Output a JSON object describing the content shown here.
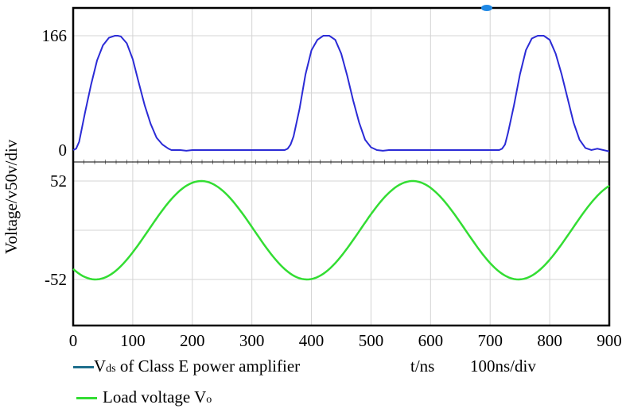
{
  "chart_data": [
    {
      "type": "line",
      "panel": "top",
      "ylabel_prefix": "Voltage/v",
      "ylabel_mid": "50v/div",
      "y_ticks": [
        "166",
        "0"
      ],
      "ylim": [
        -10,
        185
      ],
      "xlim": [
        0,
        900
      ],
      "grid": true,
      "series": [
        {
          "name": "Vds of Class E power amplifier",
          "color": "#2b2bd6",
          "x": [
            0,
            5,
            10,
            20,
            30,
            40,
            50,
            60,
            70,
            75,
            80,
            90,
            100,
            110,
            120,
            130,
            140,
            150,
            160,
            165,
            170,
            180,
            190,
            200,
            210,
            220,
            230,
            240,
            250,
            260,
            270,
            280,
            290,
            300,
            310,
            320,
            330,
            340,
            350,
            355,
            360,
            365,
            370,
            380,
            390,
            400,
            410,
            420,
            430,
            440,
            450,
            460,
            470,
            480,
            490,
            500,
            510,
            520,
            530,
            540,
            550,
            560,
            570,
            580,
            590,
            600,
            610,
            620,
            630,
            640,
            650,
            660,
            670,
            680,
            690,
            700,
            710,
            715,
            720,
            725,
            730,
            740,
            750,
            760,
            770,
            780,
            790,
            800,
            810,
            820,
            830,
            840,
            850,
            860,
            870,
            880,
            890,
            900
          ],
          "values": [
            0,
            2,
            12,
            55,
            95,
            130,
            152,
            163,
            166,
            166,
            165,
            155,
            132,
            98,
            65,
            38,
            18,
            8,
            2,
            0,
            0,
            0,
            -1,
            0,
            0,
            0,
            0,
            0,
            0,
            0,
            0,
            0,
            0,
            0,
            0,
            0,
            0,
            0,
            0,
            0,
            2,
            8,
            20,
            60,
            110,
            145,
            160,
            166,
            166,
            160,
            140,
            108,
            72,
            40,
            15,
            4,
            0,
            -1,
            0,
            0,
            0,
            0,
            0,
            0,
            0,
            0,
            0,
            0,
            0,
            0,
            0,
            0,
            0,
            0,
            0,
            0,
            0,
            0,
            2,
            8,
            25,
            65,
            110,
            145,
            162,
            166,
            166,
            160,
            140,
            110,
            75,
            40,
            15,
            3,
            0,
            2,
            0,
            -2
          ]
        }
      ]
    },
    {
      "type": "line",
      "panel": "bottom",
      "y_ticks": [
        "52",
        "-52"
      ],
      "ylim": [
        -100,
        60
      ],
      "xlim": [
        0,
        900
      ],
      "x_ticks": [
        "0",
        "100",
        "200",
        "300",
        "400",
        "500",
        "600",
        "700",
        "800",
        "900"
      ],
      "grid": true,
      "series": [
        {
          "name": "Load voltage V",
          "name_sub": "o",
          "color": "#33dd33",
          "period": 355,
          "peak_x": 215,
          "amplitude": 52,
          "offset": 0
        }
      ]
    }
  ],
  "legend": {
    "vds_main": "V",
    "vds_sub": "ds",
    "vds_rest": " of Class E power amplifier",
    "time_unit": "t/ns",
    "time_div": "100ns/div",
    "load_main": "Load voltage V",
    "load_sub": "o"
  },
  "colors": {
    "frame": "#000000",
    "grid": "#d4d4d4",
    "vds_legend_line": "#1e6e8c",
    "load_legend_line": "#33dd33",
    "marker": "#1e88e5"
  }
}
